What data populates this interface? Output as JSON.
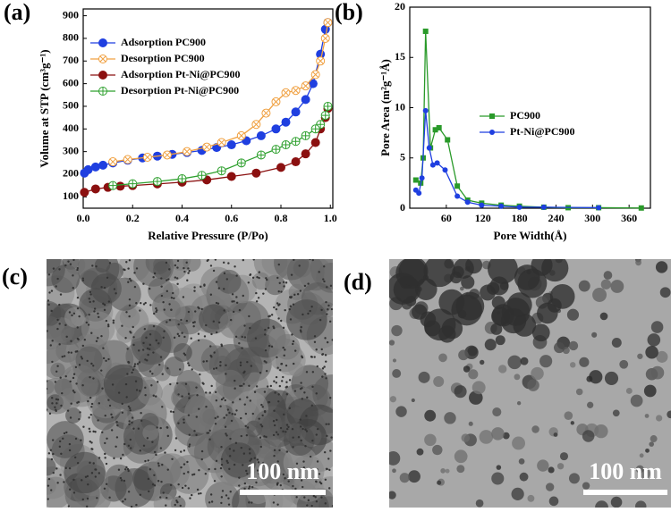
{
  "chart_data": [
    {
      "type": "line",
      "panel": "(a)",
      "xlabel": "Relative Pressure (P/Po)",
      "ylabel": "Volume at STP (cm³g⁻¹)",
      "xlim": [
        0,
        1.01
      ],
      "ylim": [
        50,
        930
      ],
      "xticks": [
        {
          "value": 0,
          "label": "0.0"
        },
        0.2,
        0.4,
        0.6,
        0.8,
        {
          "value": 1,
          "label": "1.0"
        }
      ],
      "yticks": [
        100,
        200,
        300,
        400,
        500,
        600,
        700,
        800,
        900
      ],
      "legend": "upper-left",
      "series": [
        {
          "name": "Adsorption PC900",
          "color": "#1f3fe0",
          "marker": "filled-circle",
          "x": [
            0.005,
            0.02,
            0.05,
            0.08,
            0.12,
            0.18,
            0.24,
            0.3,
            0.36,
            0.42,
            0.48,
            0.54,
            0.6,
            0.66,
            0.72,
            0.78,
            0.82,
            0.86,
            0.9,
            0.93,
            0.96,
            0.98,
            0.99
          ],
          "values": [
            205,
            220,
            232,
            240,
            250,
            262,
            272,
            280,
            288,
            296,
            305,
            318,
            330,
            348,
            370,
            400,
            430,
            475,
            530,
            600,
            730,
            840,
            870
          ]
        },
        {
          "name": "Desorption PC900",
          "color": "#f0a040",
          "marker": "open-cross",
          "x": [
            0.99,
            0.98,
            0.96,
            0.94,
            0.9,
            0.86,
            0.82,
            0.78,
            0.74,
            0.7,
            0.64,
            0.56,
            0.5,
            0.42,
            0.34,
            0.26,
            0.18,
            0.12
          ],
          "values": [
            870,
            800,
            700,
            640,
            590,
            570,
            560,
            520,
            470,
            420,
            370,
            340,
            320,
            300,
            285,
            275,
            265,
            255
          ]
        },
        {
          "name": "Adsorption Pt-Ni@PC900",
          "color": "#8b1010",
          "marker": "filled-circle",
          "x": [
            0.005,
            0.05,
            0.1,
            0.15,
            0.2,
            0.3,
            0.4,
            0.5,
            0.6,
            0.7,
            0.8,
            0.86,
            0.9,
            0.94,
            0.96,
            0.98,
            0.99
          ],
          "values": [
            120,
            135,
            142,
            147,
            150,
            157,
            165,
            175,
            190,
            205,
            230,
            255,
            290,
            340,
            400,
            450,
            490
          ]
        },
        {
          "name": "Desorption Pt-Ni@PC900",
          "color": "#2ea02e",
          "marker": "open-plus",
          "x": [
            0.99,
            0.98,
            0.96,
            0.94,
            0.9,
            0.86,
            0.82,
            0.78,
            0.72,
            0.64,
            0.56,
            0.48,
            0.4,
            0.3,
            0.2,
            0.12
          ],
          "values": [
            500,
            460,
            420,
            400,
            370,
            345,
            330,
            310,
            285,
            250,
            215,
            195,
            180,
            168,
            158,
            150
          ]
        }
      ]
    },
    {
      "type": "line",
      "panel": "(b)",
      "xlabel": "Pore Width(Å)",
      "ylabel": "Pore Area (m²g⁻¹Å)",
      "xlim": [
        0,
        395
      ],
      "ylim": [
        0,
        20
      ],
      "xticks": [
        60,
        120,
        180,
        240,
        300,
        360
      ],
      "yticks": [
        0,
        5,
        10,
        15,
        20
      ],
      "legend": "center-right",
      "series": [
        {
          "name": "PC900",
          "color": "#2a9a2a",
          "marker": "filled-square",
          "x": [
            10,
            18,
            22,
            26,
            34,
            42,
            48,
            62,
            78,
            95,
            118,
            150,
            180,
            220,
            260,
            310,
            380
          ],
          "values": [
            2.8,
            2.5,
            5,
            17.6,
            6,
            7.8,
            8,
            6.8,
            2.2,
            0.8,
            0.5,
            0.3,
            0.2,
            0.1,
            0.05,
            0.05,
            0.02
          ]
        },
        {
          "name": "Pt-Ni@PC900",
          "color": "#1f3fe0",
          "marker": "filled-circle",
          "x": [
            10,
            15,
            20,
            26,
            32,
            38,
            45,
            58,
            78,
            95,
            118,
            150,
            180,
            220,
            310
          ],
          "values": [
            1.8,
            1.5,
            3,
            9.7,
            6,
            4.3,
            4.5,
            3.8,
            1.2,
            0.6,
            0.3,
            0.2,
            0.1,
            0.1,
            0.05
          ]
        }
      ]
    }
  ],
  "images": [
    {
      "panel": "(c)",
      "scale_bar": "100 nm"
    },
    {
      "panel": "(d)",
      "scale_bar": "100 nm"
    }
  ]
}
